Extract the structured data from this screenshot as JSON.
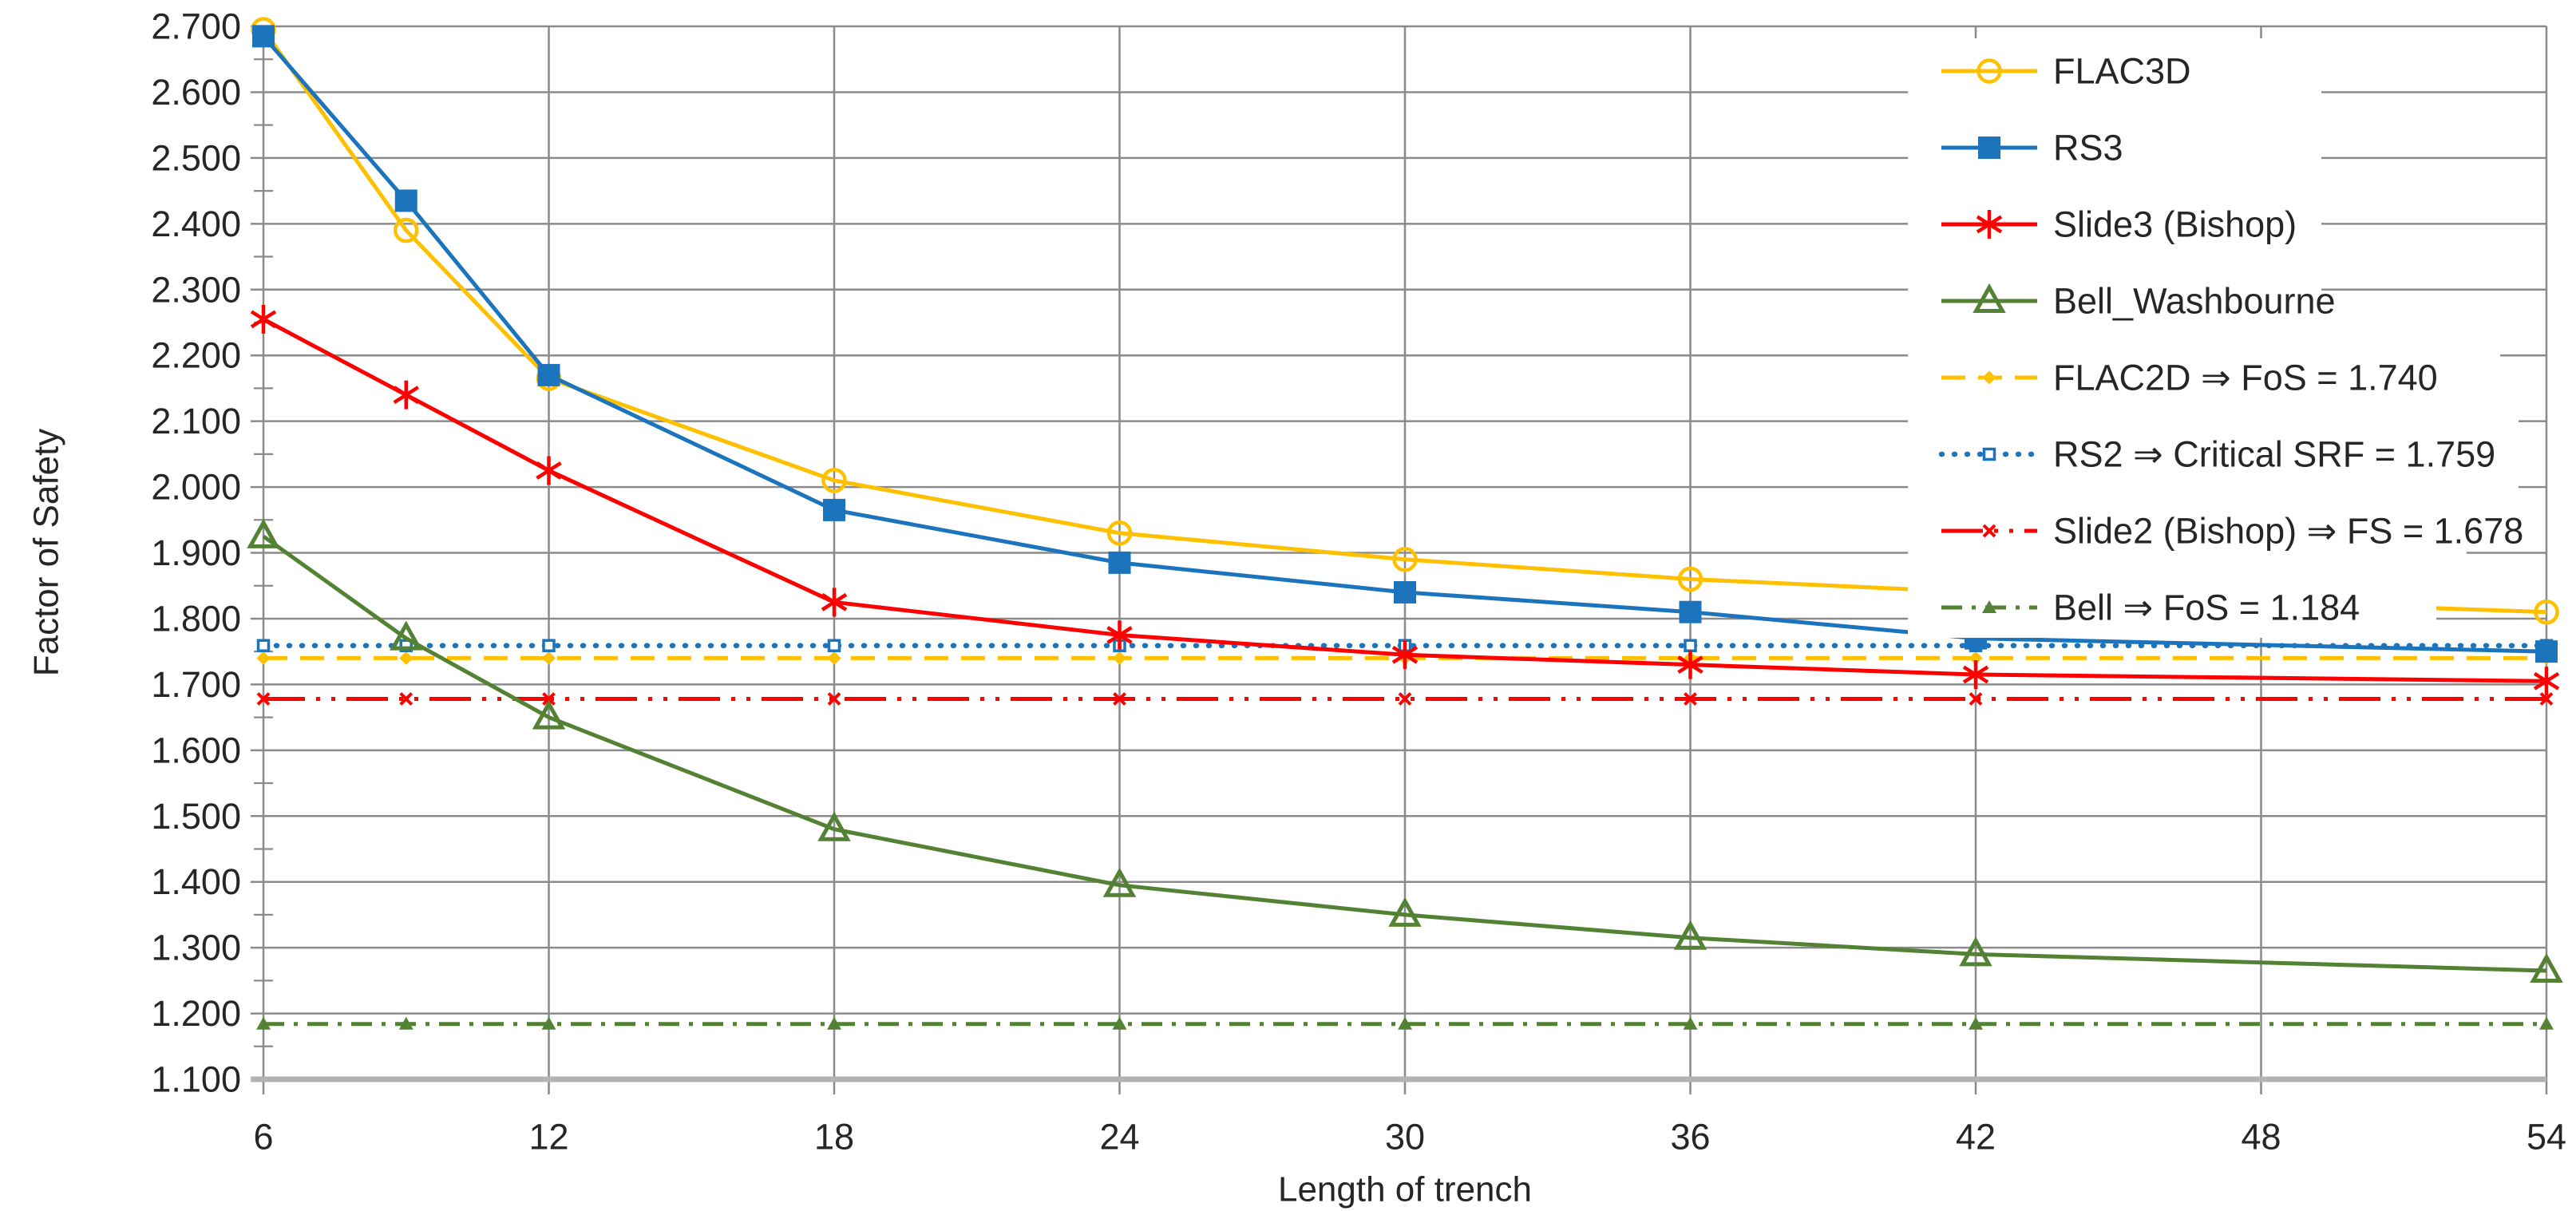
{
  "chart_data": {
    "type": "line",
    "title": "",
    "xlabel": "Length of trench",
    "ylabel": "Factor of Safety",
    "xlim": [
      6,
      54
    ],
    "ylim": [
      1.1,
      2.7
    ],
    "grid": true,
    "legend_position": "top-right",
    "x_ticks": [
      6,
      12,
      18,
      24,
      30,
      36,
      42,
      48,
      54
    ],
    "x_tick_labels": [
      "6",
      "12",
      "18",
      "24",
      "30",
      "36",
      "42",
      "48",
      "54"
    ],
    "y_ticks": [
      2.7,
      2.6,
      2.5,
      2.4,
      2.3,
      2.2,
      2.1,
      2.0,
      1.9,
      1.8,
      1.7,
      1.6,
      1.5,
      1.4,
      1.3,
      1.2,
      1.1
    ],
    "y_tick_labels": [
      "2.700",
      "2.600",
      "2.500",
      "2.400",
      "2.300",
      "2.200",
      "2.100",
      "2.000",
      "1.900",
      "1.800",
      "1.700",
      "1.600",
      "1.500",
      "1.400",
      "1.300",
      "1.200",
      "1.100"
    ],
    "y_minor_tick_step": 0.05,
    "x": [
      6,
      9,
      12,
      18,
      24,
      30,
      36,
      42,
      54
    ],
    "series": [
      {
        "name": "FLAC3D",
        "color": "#FFC000",
        "marker": "circle-open",
        "values": [
          2.695,
          2.39,
          2.165,
          2.01,
          1.93,
          1.89,
          1.86,
          1.84,
          1.81
        ]
      },
      {
        "name": "RS3",
        "color": "#1C75BC",
        "marker": "square-filled",
        "values": [
          2.685,
          2.435,
          2.17,
          1.965,
          1.885,
          1.84,
          1.81,
          1.77,
          1.75
        ]
      },
      {
        "name": "Slide3 (Bishop)",
        "color": "#FE0000",
        "marker": "asterisk",
        "values": [
          2.255,
          2.14,
          2.025,
          1.825,
          1.775,
          1.745,
          1.73,
          1.715,
          1.705
        ]
      },
      {
        "name": "Bell_Washbourne",
        "color": "#548235",
        "marker": "triangle-open",
        "values": [
          1.925,
          1.77,
          1.65,
          1.48,
          1.395,
          1.35,
          1.315,
          1.29,
          1.265
        ]
      }
    ],
    "reference_lines": [
      {
        "name": "FLAC2D",
        "value": 1.74,
        "color": "#FFC000",
        "style": "dashed",
        "marker": "diamond-small",
        "label": "FLAC2D  ⇒ FoS = 1.740"
      },
      {
        "name": "RS2",
        "value": 1.759,
        "color": "#1C75BC",
        "style": "dotted",
        "marker": "square-small",
        "label": "RS2  ⇒ Critical SRF = 1.759"
      },
      {
        "name": "Slide2 (Bishop)",
        "value": 1.678,
        "color": "#FE0000",
        "style": "dash-dot-dot",
        "marker": "x-small",
        "label": "Slide2 (Bishop)  ⇒ FS = 1.678"
      },
      {
        "name": "Bell",
        "value": 1.184,
        "color": "#548235",
        "style": "dash-dot",
        "marker": "triangle-small",
        "label": "Bell  ⇒ FoS = 1.184"
      }
    ],
    "legend_labels": [
      "FLAC3D",
      "RS3",
      "Slide3 (Bishop)",
      "Bell_Washbourne",
      "FLAC2D  ⇒ FoS = 1.740",
      "RS2  ⇒ Critical SRF = 1.759",
      "Slide2 (Bishop)  ⇒ FS = 1.678",
      "Bell  ⇒ FoS = 1.184"
    ],
    "colors": {
      "grid": "#8B8B8B",
      "axis_baseline": "#B3B3B3",
      "text": "#262626",
      "background": "#FFFFFF"
    }
  }
}
